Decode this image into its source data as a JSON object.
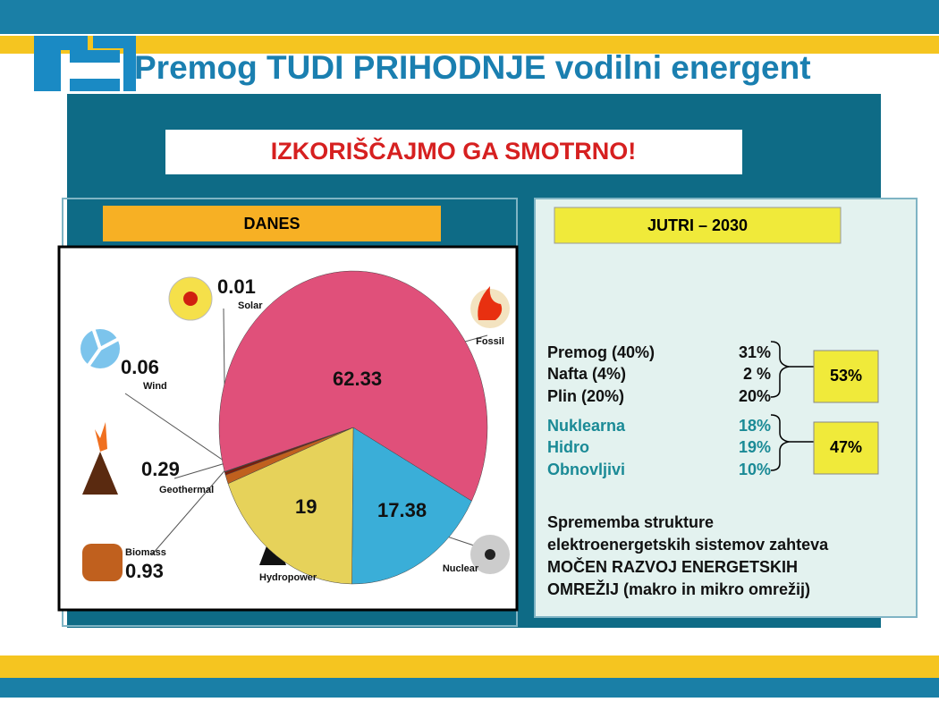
{
  "header": {
    "title": "Premog TUDI PRIHODNJE vodilni energent"
  },
  "banner": "IZKORIŠČAJMO GA SMOTRNO!",
  "left_panel": {
    "heading": "DANES"
  },
  "chart_data": {
    "type": "pie",
    "categories": [
      "Fossil",
      "Nuclear",
      "Hydropower",
      "Biomass",
      "Geothermal",
      "Wind",
      "Solar"
    ],
    "values": [
      62.33,
      17.38,
      19,
      0.93,
      0.29,
      0.06,
      0.01
    ],
    "colors": [
      "#e0507a",
      "#3aaed8",
      "#e6d25a",
      "#c0601e",
      "#7a1c0c",
      "#333333",
      "#f0c000"
    ]
  },
  "right_panel": {
    "heading": "JUTRI – 2030",
    "rows": [
      {
        "name": "Premog (40%)",
        "share": "31%"
      },
      {
        "name": "Nafta (4%)",
        "share": "2 %"
      },
      {
        "name": "Plin (20%)",
        "share": "20%"
      },
      {
        "name": "Nuklearna",
        "share": "18%"
      },
      {
        "name": "Hidro",
        "share": "19%"
      },
      {
        "name": "Obnovljivi",
        "share": "10%"
      }
    ],
    "groups": [
      "53%",
      "47%"
    ],
    "note": [
      "Sprememba strukture",
      "elektroenergetskih sistemov zahteva",
      "MOČEN RAZVOJ ENERGETSKIH",
      "OMREŽIJ (makro in mikro omrežij)"
    ]
  }
}
